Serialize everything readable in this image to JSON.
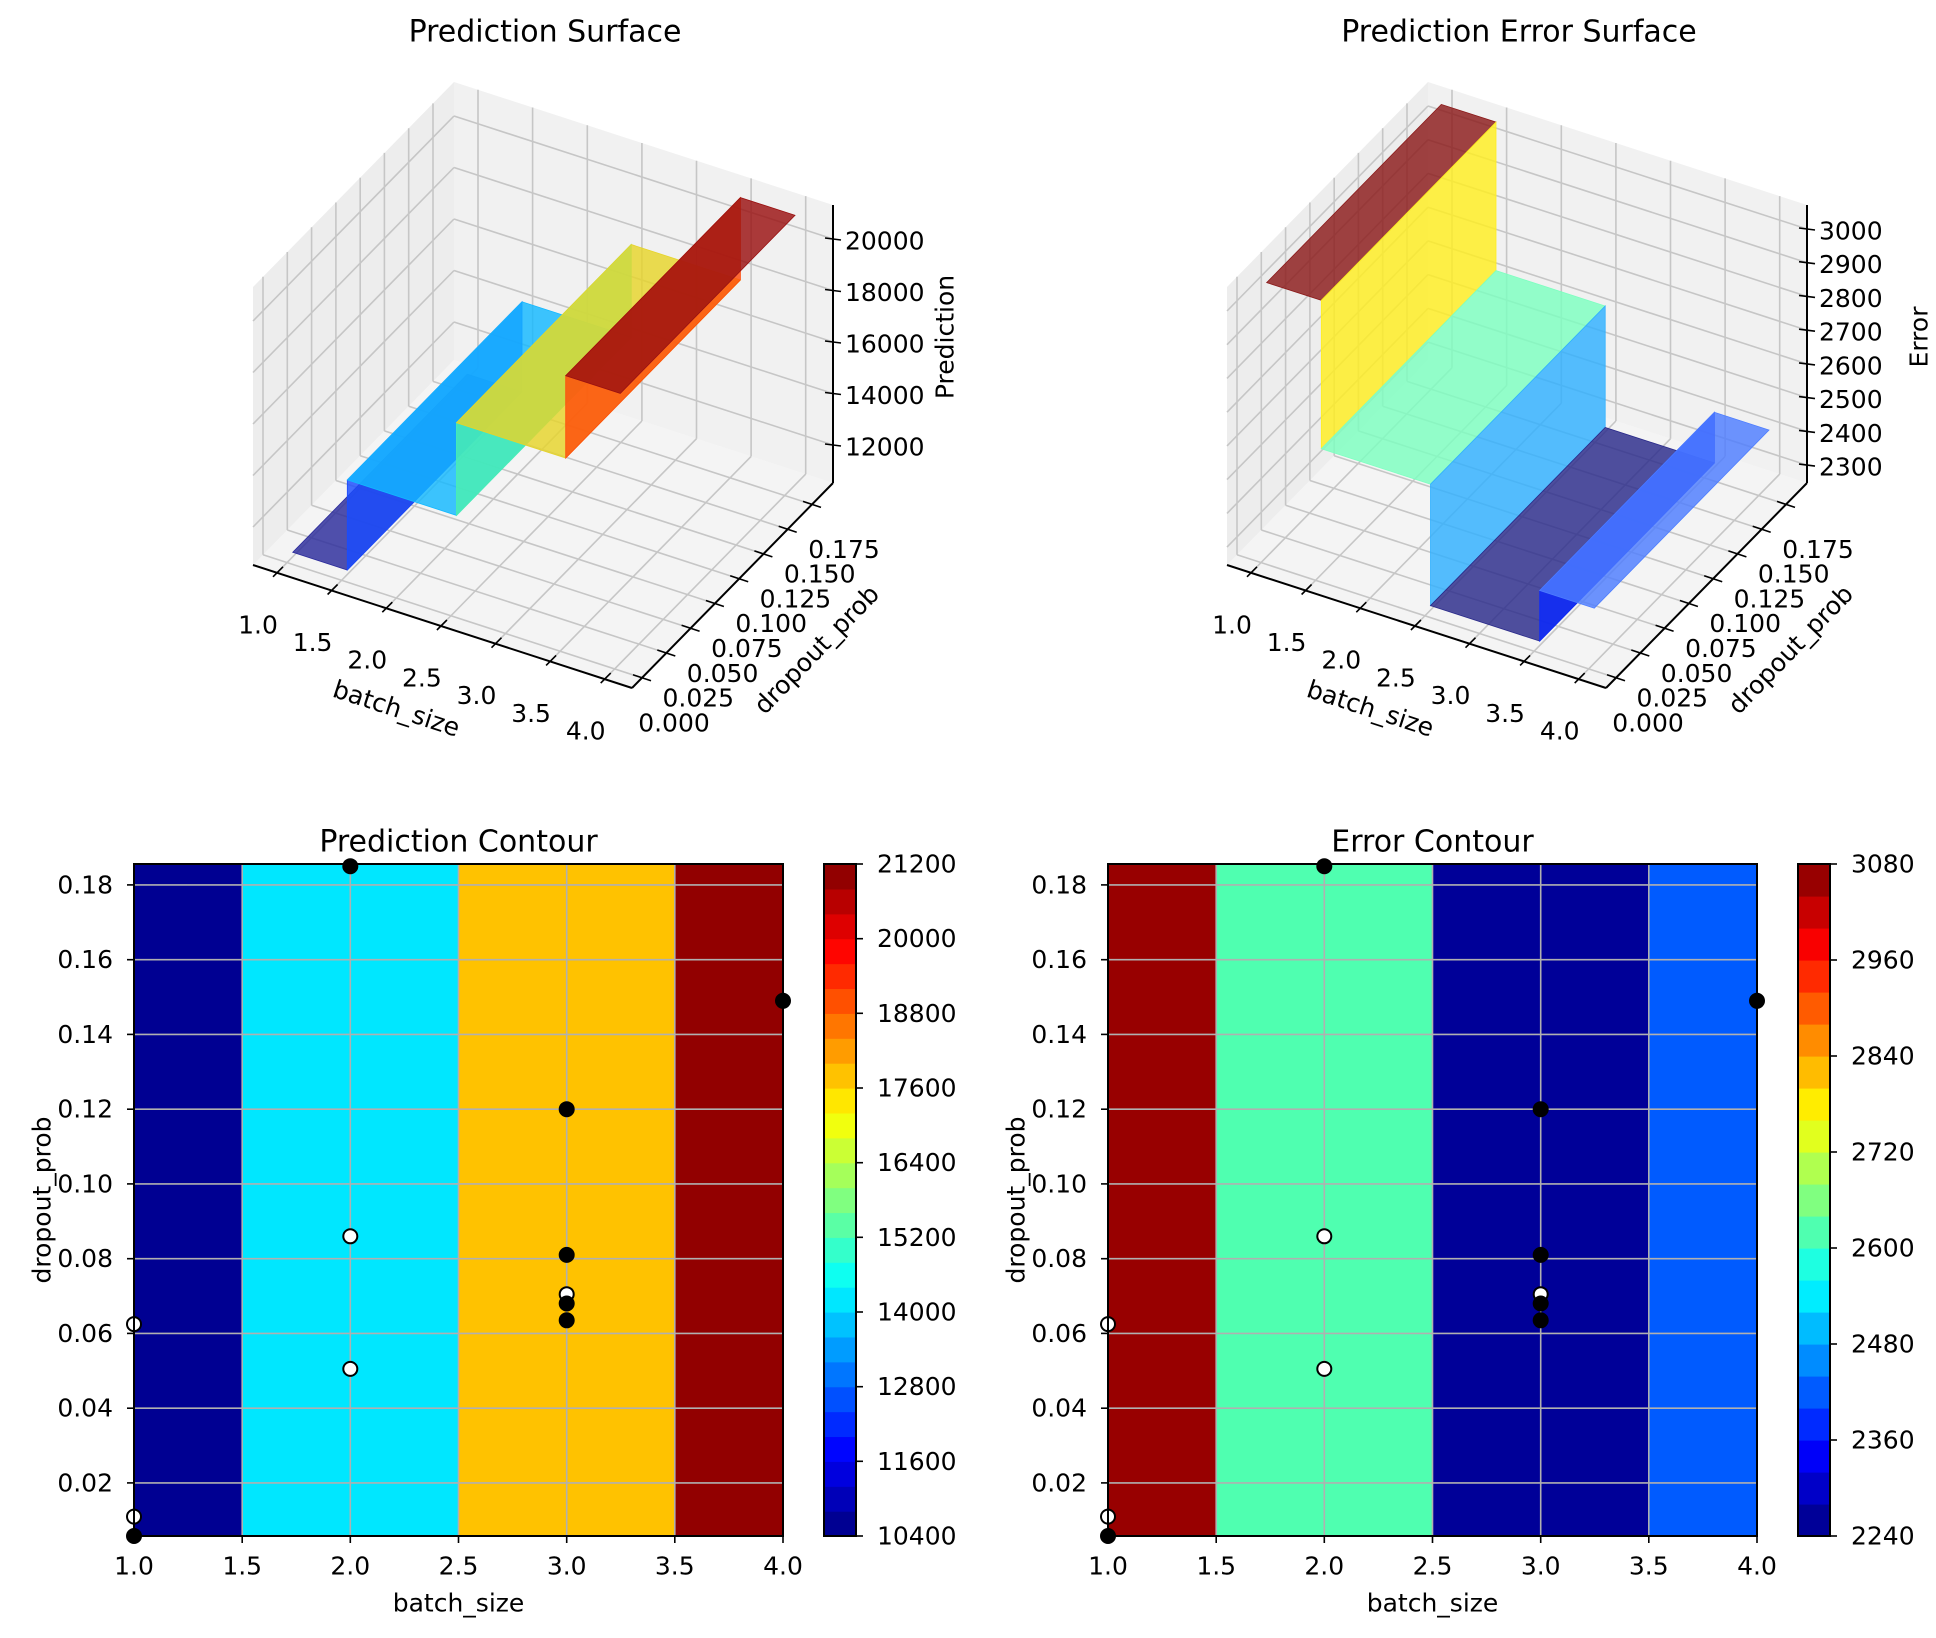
{
  "chart_data": [
    {
      "type": "surface3d",
      "title": "Prediction Surface",
      "xlabel": "batch_size",
      "ylabel": "dropout_prob",
      "zlabel": "Prediction",
      "xlim": [
        0.78,
        4.25
      ],
      "ylim": [
        -0.0103,
        0.1966
      ],
      "zlim": [
        10524,
        21320
      ],
      "xticks": [
        1.0,
        1.5,
        2.0,
        2.5,
        3.0,
        3.5,
        4.0
      ],
      "xtick_labels": [
        "1.0",
        "1.5",
        "2.0",
        "2.5",
        "3.0",
        "3.5",
        "4.0"
      ],
      "yticks": [
        0.0,
        0.025,
        0.05,
        0.075,
        0.1,
        0.125,
        0.15,
        0.175
      ],
      "ytick_labels": [
        "0.000",
        "0.025",
        "0.050",
        "0.075",
        "0.100",
        "0.125",
        "0.150",
        "0.175"
      ],
      "zticks": [
        12000,
        14000,
        16000,
        18000,
        20000
      ],
      "ztick_labels": [
        "12000",
        "14000",
        "16000",
        "18000",
        "20000"
      ],
      "grid": true,
      "colormap": "jet",
      "y_extent": [
        0.0058,
        0.1856
      ],
      "steps": [
        {
          "x": [
            1.0,
            1.5
          ],
          "z": 10700
        },
        {
          "x": [
            1.5,
            2.5
          ],
          "z": 14200
        },
        {
          "x": [
            2.5,
            3.5
          ],
          "z": 17800
        },
        {
          "x": [
            3.5,
            4.0
          ],
          "z": 21000
        }
      ],
      "top_colors": [
        "#2b2b9b",
        "#12b8ff",
        "#e6d42a",
        "#9a1010"
      ],
      "wall_colors": [
        "#1a4cff",
        "#4cf0b0",
        "#ff4a0a"
      ]
    },
    {
      "type": "surface3d",
      "title": "Prediction Error Surface",
      "xlabel": "batch_size",
      "ylabel": "dropout_prob",
      "zlabel": "Error",
      "xlim": [
        0.78,
        4.25
      ],
      "ylim": [
        -0.0103,
        0.1966
      ],
      "zlim": [
        2247,
        3071
      ],
      "xticks": [
        1.0,
        1.5,
        2.0,
        2.5,
        3.0,
        3.5,
        4.0
      ],
      "xtick_labels": [
        "1.0",
        "1.5",
        "2.0",
        "2.5",
        "3.0",
        "3.5",
        "4.0"
      ],
      "yticks": [
        0.0,
        0.025,
        0.05,
        0.075,
        0.1,
        0.125,
        0.15,
        0.175
      ],
      "ytick_labels": [
        "0.000",
        "0.025",
        "0.050",
        "0.075",
        "0.100",
        "0.125",
        "0.150",
        "0.175"
      ],
      "zticks": [
        2300,
        2400,
        2500,
        2600,
        2700,
        2800,
        2900,
        3000
      ],
      "ztick_labels": [
        "2300",
        "2400",
        "2500",
        "2600",
        "2700",
        "2800",
        "2900",
        "3000"
      ],
      "grid": true,
      "colormap": "jet",
      "y_extent": [
        0.0058,
        0.1856
      ],
      "steps": [
        {
          "x": [
            1.0,
            1.5
          ],
          "z": 3060
        },
        {
          "x": [
            1.5,
            2.5
          ],
          "z": 2620
        },
        {
          "x": [
            2.5,
            3.5
          ],
          "z": 2260
        },
        {
          "x": [
            3.5,
            4.0
          ],
          "z": 2410
        }
      ],
      "top_colors": [
        "#8b1a1a",
        "#7dffc0",
        "#2a2a8a",
        "#4d7dff"
      ],
      "wall_colors": [
        "#ffee20",
        "#30b0ff",
        "#0a28ff"
      ]
    },
    {
      "type": "contour",
      "title": "Prediction Contour",
      "xlabel": "batch_size",
      "ylabel": "dropout_prob",
      "xlim": [
        1.0,
        4.0
      ],
      "ylim": [
        0.0058,
        0.1856
      ],
      "xticks": [
        1.0,
        1.5,
        2.0,
        2.5,
        3.0,
        3.5,
        4.0
      ],
      "xtick_labels": [
        "1.0",
        "1.5",
        "2.0",
        "2.5",
        "3.0",
        "3.5",
        "4.0"
      ],
      "yticks": [
        0.02,
        0.04,
        0.06,
        0.08,
        0.1,
        0.12,
        0.14,
        0.16,
        0.18
      ],
      "ytick_labels": [
        "0.02",
        "0.04",
        "0.06",
        "0.08",
        "0.10",
        "0.12",
        "0.14",
        "0.16",
        "0.18"
      ],
      "grid": true,
      "colormap": "jet",
      "levels": {
        "min": 10400,
        "max": 21200,
        "step": 400
      },
      "colorbar_ticks": [
        10400,
        11600,
        12800,
        14000,
        15200,
        16400,
        17600,
        18800,
        20000,
        21200
      ],
      "colorbar_tick_labels": [
        "10400",
        "11600",
        "12800",
        "14000",
        "15200",
        "16400",
        "17600",
        "18800",
        "20000",
        "21200"
      ],
      "regions": [
        {
          "x": [
            1.0,
            1.5
          ],
          "z": 10600
        },
        {
          "x": [
            1.5,
            2.5
          ],
          "z": 14200
        },
        {
          "x": [
            2.5,
            3.5
          ],
          "z": 17800
        },
        {
          "x": [
            3.5,
            4.0
          ],
          "z": 21000
        }
      ],
      "points": [
        {
          "x": 1.0,
          "y": 0.0625,
          "fill": "#ffffff"
        },
        {
          "x": 1.0,
          "y": 0.011,
          "fill": "#ffffff"
        },
        {
          "x": 1.0,
          "y": 0.0058,
          "fill": "#000000"
        },
        {
          "x": 2.0,
          "y": 0.185,
          "fill": "#000000"
        },
        {
          "x": 2.0,
          "y": 0.086,
          "fill": "#ffffff"
        },
        {
          "x": 2.0,
          "y": 0.0505,
          "fill": "#ffffff"
        },
        {
          "x": 3.0,
          "y": 0.12,
          "fill": "#000000"
        },
        {
          "x": 3.0,
          "y": 0.081,
          "fill": "#000000"
        },
        {
          "x": 3.0,
          "y": 0.0705,
          "fill": "#ffffff"
        },
        {
          "x": 3.0,
          "y": 0.068,
          "fill": "#000000"
        },
        {
          "x": 3.0,
          "y": 0.0635,
          "fill": "#000000"
        },
        {
          "x": 4.0,
          "y": 0.149,
          "fill": "#000000"
        }
      ]
    },
    {
      "type": "contour",
      "title": "Error Contour",
      "xlabel": "batch_size",
      "ylabel": "dropout_prob",
      "xlim": [
        1.0,
        4.0
      ],
      "ylim": [
        0.0058,
        0.1856
      ],
      "xticks": [
        1.0,
        1.5,
        2.0,
        2.5,
        3.0,
        3.5,
        4.0
      ],
      "xtick_labels": [
        "1.0",
        "1.5",
        "2.0",
        "2.5",
        "3.0",
        "3.5",
        "4.0"
      ],
      "yticks": [
        0.02,
        0.04,
        0.06,
        0.08,
        0.1,
        0.12,
        0.14,
        0.16,
        0.18
      ],
      "ytick_labels": [
        "0.02",
        "0.04",
        "0.06",
        "0.08",
        "0.10",
        "0.12",
        "0.14",
        "0.16",
        "0.18"
      ],
      "grid": true,
      "colormap": "jet",
      "levels": {
        "min": 2240,
        "max": 3080,
        "step": 40
      },
      "colorbar_ticks": [
        2240,
        2360,
        2480,
        2600,
        2720,
        2840,
        2960,
        3080
      ],
      "colorbar_tick_labels": [
        "2240",
        "2360",
        "2480",
        "2600",
        "2720",
        "2840",
        "2960",
        "3080"
      ],
      "regions": [
        {
          "x": [
            1.0,
            1.5
          ],
          "z": 3060
        },
        {
          "x": [
            1.5,
            2.5
          ],
          "z": 2620
        },
        {
          "x": [
            2.5,
            3.5
          ],
          "z": 2260
        },
        {
          "x": [
            3.5,
            4.0
          ],
          "z": 2420
        }
      ],
      "points": [
        {
          "x": 1.0,
          "y": 0.0625,
          "fill": "#ffffff"
        },
        {
          "x": 1.0,
          "y": 0.011,
          "fill": "#ffffff"
        },
        {
          "x": 1.0,
          "y": 0.0058,
          "fill": "#000000"
        },
        {
          "x": 2.0,
          "y": 0.185,
          "fill": "#000000"
        },
        {
          "x": 2.0,
          "y": 0.086,
          "fill": "#ffffff"
        },
        {
          "x": 2.0,
          "y": 0.0505,
          "fill": "#ffffff"
        },
        {
          "x": 3.0,
          "y": 0.12,
          "fill": "#000000"
        },
        {
          "x": 3.0,
          "y": 0.081,
          "fill": "#000000"
        },
        {
          "x": 3.0,
          "y": 0.0705,
          "fill": "#ffffff"
        },
        {
          "x": 3.0,
          "y": 0.068,
          "fill": "#000000"
        },
        {
          "x": 3.0,
          "y": 0.0635,
          "fill": "#000000"
        },
        {
          "x": 4.0,
          "y": 0.149,
          "fill": "#000000"
        }
      ]
    }
  ]
}
